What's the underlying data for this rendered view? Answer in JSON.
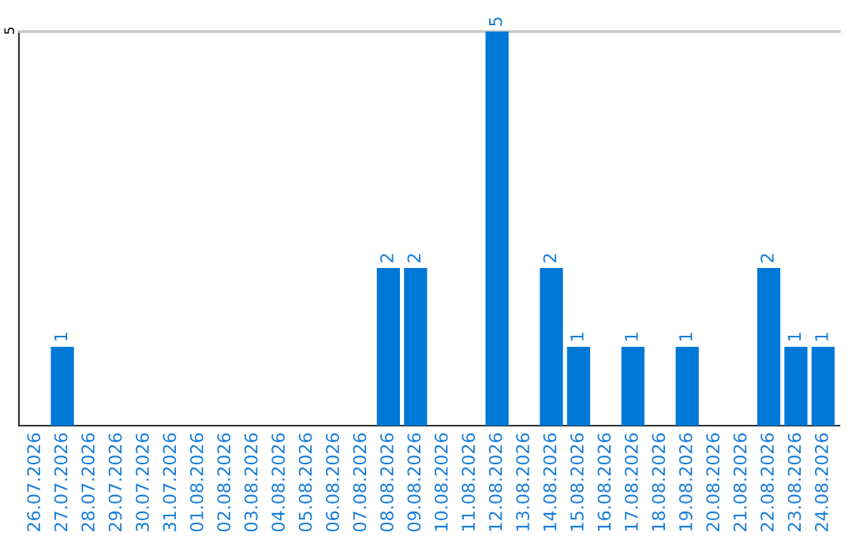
{
  "chart_data": {
    "type": "bar",
    "categories": [
      "26.07.2026",
      "27.07.2026",
      "28.07.2026",
      "29.07.2026",
      "30.07.2026",
      "31.07.2026",
      "01.08.2026",
      "02.08.2026",
      "03.08.2026",
      "04.08.2026",
      "05.08.2026",
      "06.08.2026",
      "07.08.2026",
      "08.08.2026",
      "09.08.2026",
      "10.08.2026",
      "11.08.2026",
      "12.08.2026",
      "13.08.2026",
      "14.08.2026",
      "15.08.2026",
      "16.08.2026",
      "17.08.2026",
      "18.08.2026",
      "19.08.2026",
      "20.08.2026",
      "21.08.2026",
      "22.08.2026",
      "23.08.2026",
      "24.08.2026"
    ],
    "values": [
      0,
      1,
      0,
      0,
      0,
      0,
      0,
      0,
      0,
      0,
      0,
      0,
      0,
      2,
      2,
      0,
      0,
      5,
      0,
      2,
      1,
      0,
      1,
      0,
      1,
      0,
      0,
      2,
      1,
      1
    ],
    "color": "#0078d7",
    "value_labels": [
      null,
      "1",
      null,
      null,
      null,
      null,
      null,
      null,
      null,
      null,
      null,
      null,
      null,
      "2",
      "2",
      null,
      null,
      "5",
      null,
      "2",
      "1",
      null,
      "1",
      null,
      "1",
      null,
      null,
      "2",
      "1",
      "1"
    ],
    "ylim": [
      0,
      5
    ],
    "yticks": [
      5
    ]
  }
}
